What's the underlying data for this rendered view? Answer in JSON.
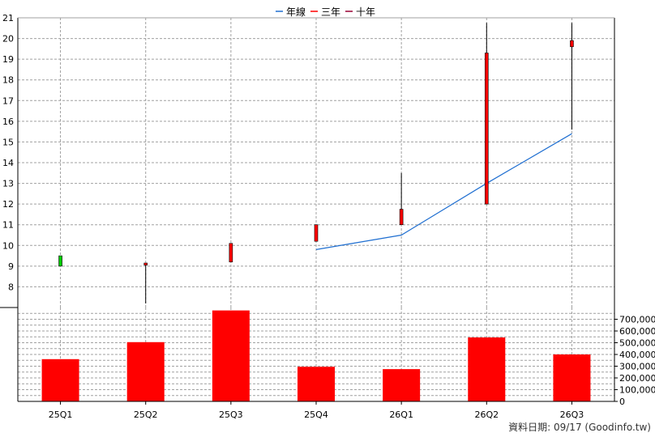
{
  "legend": [
    {
      "label": "年線",
      "color": "#1f6fd1",
      "icon": "line-marker-icon"
    },
    {
      "label": "三年",
      "color": "#ff0000",
      "icon": "line-marker-icon"
    },
    {
      "label": "十年",
      "color": "#990033",
      "icon": "line-marker-icon"
    }
  ],
  "footer": "資料日期: 09/17  (Goodinfo.tw)",
  "chart_data": [
    {
      "type": "candlestick",
      "x_categories": [
        "25Q1",
        "25Q2",
        "25Q3",
        "25Q4",
        "26Q1",
        "26Q2",
        "26Q3"
      ],
      "ylim": [
        7,
        21
      ],
      "y_ticks": [
        8,
        9,
        10,
        11,
        12,
        13,
        14,
        15,
        16,
        17,
        18,
        19,
        20,
        21
      ],
      "y_axis_side": "left",
      "grid": true,
      "up_color": "#ff0000",
      "down_color": "#00cc00",
      "candles": [
        {
          "category": "25Q1",
          "open": 9.5,
          "close": 9.0,
          "high": 9.5,
          "low": 9.0
        },
        {
          "category": "25Q2",
          "open": 9.05,
          "close": 9.15,
          "high": 9.15,
          "low": 7.2
        },
        {
          "category": "25Q3",
          "open": 9.2,
          "close": 10.1,
          "high": 10.1,
          "low": 9.2
        },
        {
          "category": "25Q4",
          "open": 10.2,
          "close": 11.0,
          "high": 11.0,
          "low": 10.2
        },
        {
          "category": "26Q1",
          "open": 11.0,
          "close": 11.75,
          "high": 13.5,
          "low": 11.0
        },
        {
          "category": "26Q2",
          "open": 12.0,
          "close": 19.3,
          "high": 20.75,
          "low": 12.0
        },
        {
          "category": "26Q3",
          "open": 19.6,
          "close": 19.9,
          "high": 20.75,
          "low": 15.6
        }
      ],
      "series": [
        {
          "name": "年線",
          "color": "#1f6fd1",
          "points": [
            {
              "x": "25Q4",
              "y": 9.8
            },
            {
              "x": "26Q1",
              "y": 10.5
            },
            {
              "x": "26Q2",
              "y": 13.0
            },
            {
              "x": "26Q3",
              "y": 15.4
            }
          ]
        }
      ]
    },
    {
      "type": "bar",
      "categories": [
        "25Q1",
        "25Q2",
        "25Q3",
        "25Q4",
        "26Q1",
        "26Q2",
        "26Q3"
      ],
      "values": [
        360000,
        505000,
        775000,
        295000,
        275000,
        545000,
        400000
      ],
      "ylim": [
        0,
        800000
      ],
      "y_ticks": [
        0,
        100000,
        200000,
        300000,
        400000,
        500000,
        600000,
        700000
      ],
      "y_tick_labels": [
        "0",
        "100,000",
        "200,000",
        "300,000",
        "400,000",
        "500,000",
        "600,000",
        "700,000"
      ],
      "y_axis_side": "right",
      "color": "#ff0000",
      "grid": true
    }
  ]
}
